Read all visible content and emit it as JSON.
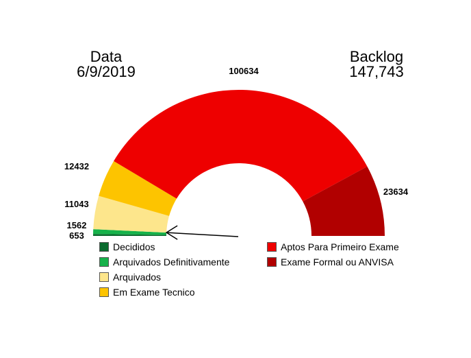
{
  "header": {
    "date_label": "Data",
    "date_value": "6/9/2019",
    "backlog_label": "Backlog",
    "backlog_value": "147,743"
  },
  "chart_data": {
    "type": "pie",
    "variant": "half-donut",
    "categories": [
      "Decididos",
      "Arquivados Definitivamente",
      "Arquivados",
      "Em Exame Tecnico",
      "Aptos Para Primeiro Exame",
      "Exame Formal ou ANVISA"
    ],
    "values": [
      653,
      1562,
      11043,
      12432,
      100634,
      23634
    ],
    "data_labels": [
      "653",
      "1562",
      "11043",
      "12432",
      "100634",
      "23634"
    ],
    "colors": [
      "#0b6b2e",
      "#16b24a",
      "#fde68c",
      "#fdc400",
      "#ee0000",
      "#b10000"
    ],
    "legend": [
      "Decididos",
      "Arquivados Definitivamente",
      "Arquivados",
      "Em Exame Tecnico",
      "Aptos Para Primeiro Exame",
      "Exame Formal ou ANVISA"
    ],
    "legend_placement": "bottom",
    "annotation": "arrow pointing to boundary between Arquivados Definitivamente and Arquivados"
  }
}
